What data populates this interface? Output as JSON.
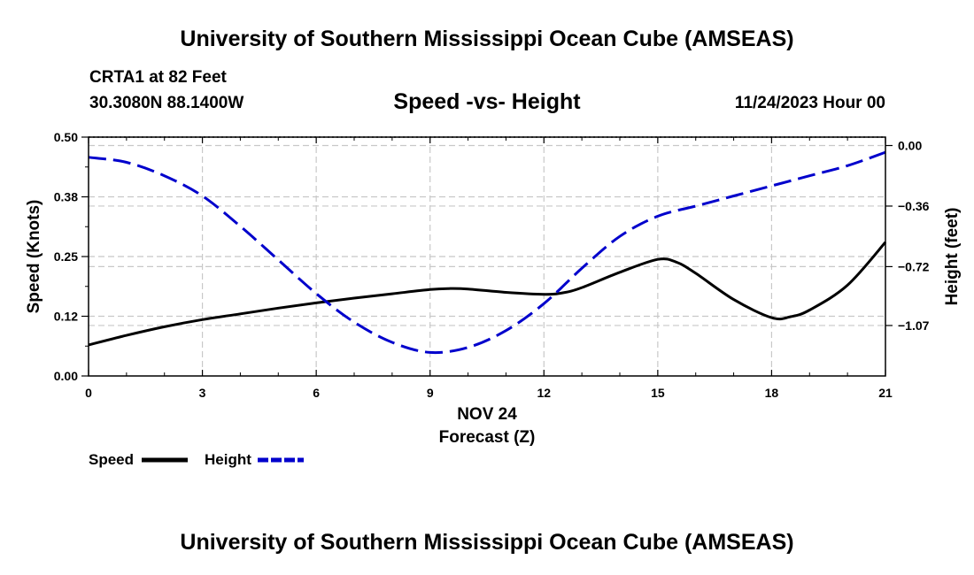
{
  "page": {
    "title_top": "University of Southern Mississippi Ocean Cube (AMSEAS)",
    "title_bottom": "University of Southern Mississippi Ocean Cube (AMSEAS)",
    "station": "CRTA1 at 82 Feet",
    "coords": "30.3080N  88.1400W",
    "datetime": "11/24/2023 Hour 00"
  },
  "chart_data": {
    "type": "line",
    "title": "Speed -vs- Height",
    "xlabel": "Forecast (Z)",
    "xsublabel": "NOV 24",
    "ylabel": "Speed (Knots)",
    "y2label": "Height (feet)",
    "xlim": [
      0,
      21
    ],
    "ylim": [
      0,
      0.5
    ],
    "y2lim": [
      -1.37,
      0.05
    ],
    "xticks": [
      0,
      3,
      6,
      9,
      12,
      15,
      18,
      21
    ],
    "xticklabels": [
      "0",
      "3",
      "6",
      "9",
      "12",
      "15",
      "18",
      "21"
    ],
    "yticks": [
      0,
      0.125,
      0.25,
      0.375,
      0.5
    ],
    "yticklabels": [
      "0.00",
      "0.12",
      "0.25",
      "0.38",
      "0.50"
    ],
    "y2ticks": [
      0.0,
      -0.36,
      -0.72,
      -1.07
    ],
    "y2ticklabels": [
      "0.00",
      "−0.36",
      "−0.72",
      "−1.07"
    ],
    "grid": true,
    "series": [
      {
        "name": "Speed",
        "axis": "left",
        "color": "#000000",
        "style": "solid",
        "x": [
          0,
          1,
          2,
          3,
          4,
          5,
          6,
          7,
          8,
          9,
          9.5,
          10,
          11,
          12,
          12.5,
          13,
          14,
          15,
          15.5,
          16,
          17,
          18,
          18.5,
          19,
          20,
          21
        ],
        "y": [
          0.065,
          0.085,
          0.103,
          0.118,
          0.13,
          0.142,
          0.153,
          0.163,
          0.172,
          0.181,
          0.183,
          0.182,
          0.175,
          0.171,
          0.174,
          0.185,
          0.217,
          0.244,
          0.238,
          0.215,
          0.16,
          0.122,
          0.124,
          0.138,
          0.19,
          0.28
        ]
      },
      {
        "name": "Height",
        "axis": "right",
        "color": "#0000cc",
        "style": "dashed",
        "x": [
          0,
          1,
          2,
          3,
          4,
          5,
          6,
          7,
          8,
          9,
          10,
          11,
          12,
          13,
          14,
          15,
          16,
          17,
          18,
          19,
          20,
          21
        ],
        "y": [
          -0.07,
          -0.1,
          -0.18,
          -0.3,
          -0.48,
          -0.68,
          -0.88,
          -1.05,
          -1.17,
          -1.23,
          -1.2,
          -1.1,
          -0.94,
          -0.73,
          -0.54,
          -0.42,
          -0.36,
          -0.3,
          -0.24,
          -0.18,
          -0.12,
          -0.04
        ]
      }
    ],
    "legend": [
      {
        "label": "Speed",
        "color": "#000000",
        "style": "solid"
      },
      {
        "label": "Height",
        "color": "#0000cc",
        "style": "dashed"
      }
    ],
    "legend_position": "bottom-left"
  }
}
